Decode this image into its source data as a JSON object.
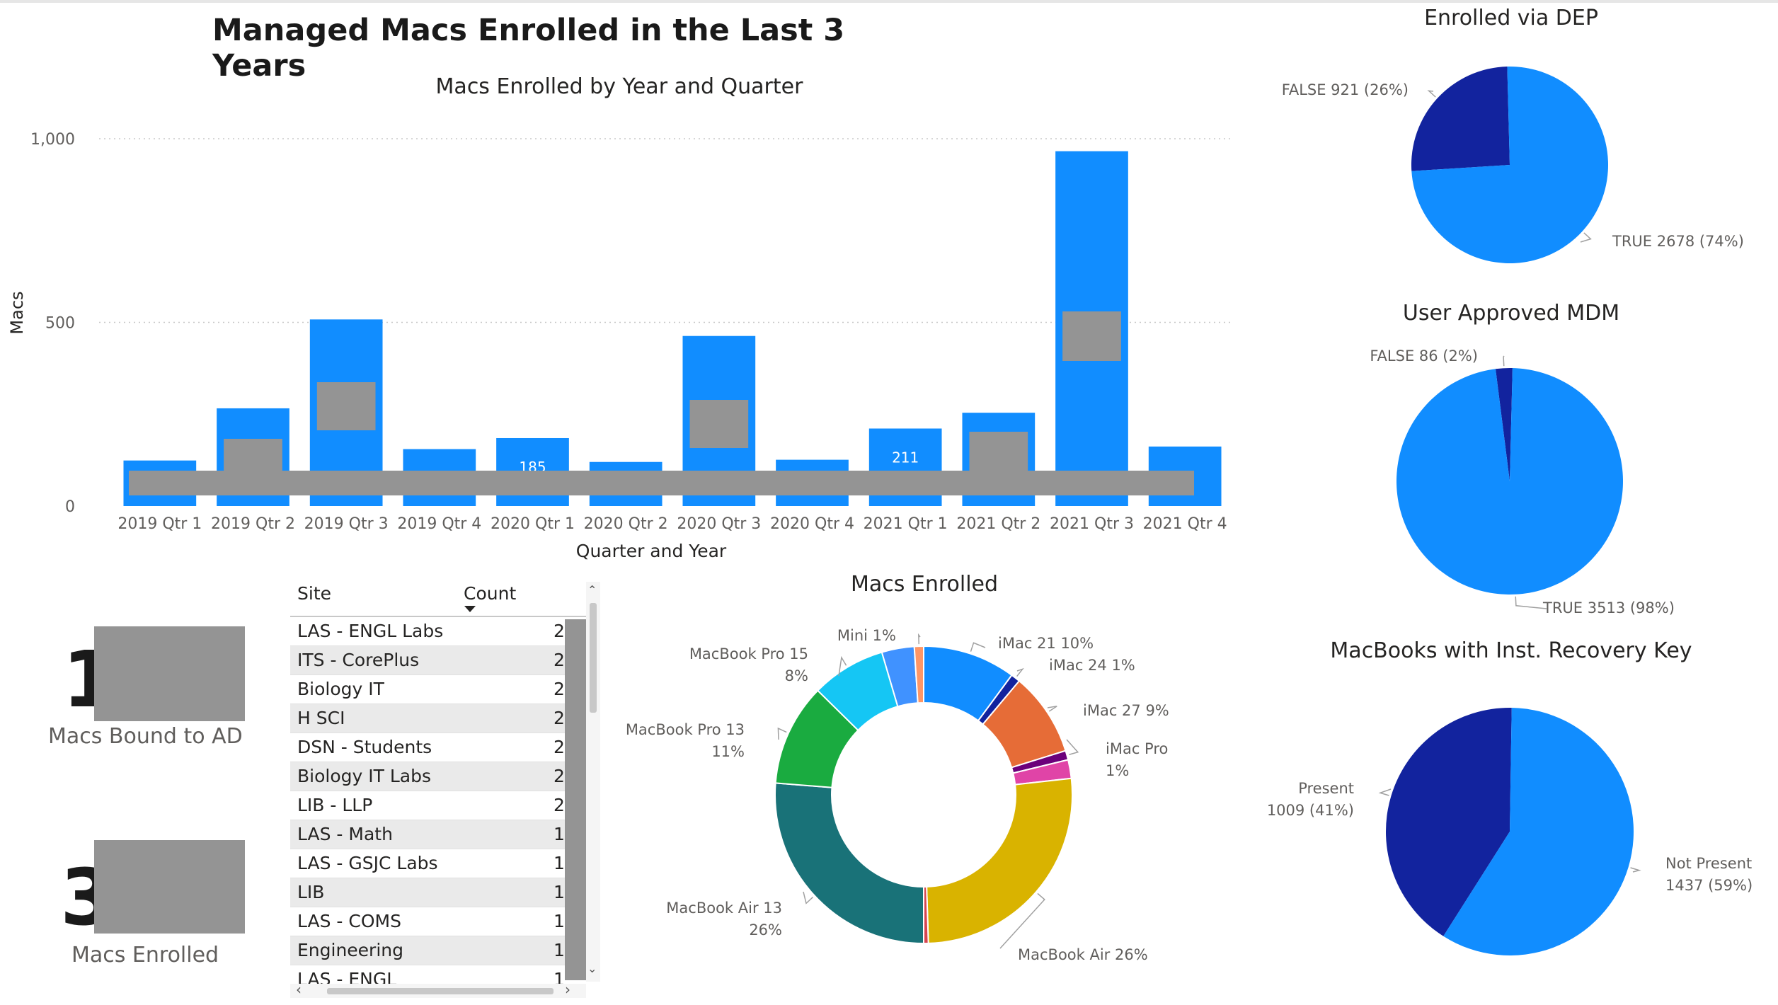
{
  "page": {
    "title": "Managed Macs Enrolled in the Last 3 Years"
  },
  "chart_data": [
    {
      "type": "bar",
      "title": "Macs Enrolled by Year and Quarter",
      "xlabel": "Quarter and Year",
      "ylabel": "Macs",
      "ylim": [
        0,
        1000
      ],
      "yticks": [
        "0",
        "500",
        "1,000"
      ],
      "ytick_values": [
        0,
        500,
        1000
      ],
      "grid": true,
      "categories": [
        "2019 Qtr 1",
        "2019 Qtr 2",
        "2019 Qtr 3",
        "2019 Qtr 4",
        "2020 Qtr 1",
        "2020 Qtr 2",
        "2020 Qtr 3",
        "2020 Qtr 4",
        "2021 Qtr 1",
        "2021 Qtr 2",
        "2021 Qtr 3",
        "2021 Qtr 4"
      ],
      "values": [
        124,
        266,
        508,
        155,
        185,
        120,
        463,
        126,
        211,
        254,
        966,
        162
      ],
      "data_labels": [
        "",
        "",
        "",
        "",
        "185",
        "",
        "",
        "",
        "211",
        "",
        "",
        ""
      ],
      "color": "#118dff"
    },
    {
      "type": "pie",
      "title": "Enrolled via DEP",
      "slices": [
        {
          "label": "FALSE 921 (26%)",
          "value": 921,
          "color": "#12239e"
        },
        {
          "label": "TRUE 2678 (74%)",
          "value": 2678,
          "color": "#118dff"
        }
      ]
    },
    {
      "type": "pie",
      "title": "User Approved MDM",
      "slices": [
        {
          "label": "FALSE 86 (2%)",
          "value": 86,
          "color": "#12239e"
        },
        {
          "label": "TRUE 3513 (98%)",
          "value": 3513,
          "color": "#118dff"
        }
      ]
    },
    {
      "type": "pie",
      "title": "MacBooks with Inst. Recovery Key",
      "slices": [
        {
          "label": "Present",
          "label2": "1009 (41%)",
          "value": 1009,
          "color": "#12239e"
        },
        {
          "label": "Not Present",
          "label2": "1437 (59%)",
          "value": 1437,
          "color": "#118dff"
        }
      ]
    },
    {
      "type": "donut",
      "title": "Macs Enrolled",
      "slices": [
        {
          "label": "iMac 21 10%",
          "value": 10,
          "color": "#118dff"
        },
        {
          "label": "iMac 24 1%",
          "value": 1,
          "color": "#12239e"
        },
        {
          "label": "iMac 27 9%",
          "value": 9,
          "color": "#e66c37"
        },
        {
          "label": "iMac Pro",
          "label2": "1%",
          "value": 1,
          "color": "#6b007b"
        },
        {
          "label": "",
          "value": 2,
          "color": "#e044a7"
        },
        {
          "label": "MacBook Air 26%",
          "value": 26,
          "color": "#d9b300"
        },
        {
          "label": "",
          "value": 0.5,
          "color": "#d64550"
        },
        {
          "label": "MacBook Air 13",
          "label2": "26%",
          "value": 26,
          "color": "#197278"
        },
        {
          "label": "MacBook Pro 13",
          "label2": "11%",
          "value": 11,
          "color": "#1aab40"
        },
        {
          "label": "MacBook Pro 15",
          "label2": "8%",
          "value": 8,
          "color": "#15c6f4"
        },
        {
          "label": "",
          "value": 3.5,
          "color": "#4092ff"
        },
        {
          "label": "Mini 1%",
          "value": 1,
          "color": "#fe9666"
        }
      ]
    }
  ],
  "kpis": [
    {
      "value": "1",
      "label": "Macs Bound to AD"
    },
    {
      "value": "3",
      "label": "Macs Enrolled"
    }
  ],
  "table": {
    "columns": [
      "Site",
      "Count"
    ],
    "rows": [
      {
        "site": "LAS - ENGL Labs",
        "count": "2"
      },
      {
        "site": "ITS - CorePlus",
        "count": "2"
      },
      {
        "site": "Biology IT",
        "count": "2"
      },
      {
        "site": "H SCI",
        "count": "2"
      },
      {
        "site": "DSN - Students",
        "count": "2"
      },
      {
        "site": "Biology IT Labs",
        "count": "2"
      },
      {
        "site": "LIB - LLP",
        "count": "2"
      },
      {
        "site": "LAS - Math",
        "count": "1"
      },
      {
        "site": "LAS - GSJC Labs",
        "count": "1"
      },
      {
        "site": "LIB",
        "count": "1"
      },
      {
        "site": "LAS - COMS",
        "count": "1"
      },
      {
        "site": "Engineering",
        "count": "1"
      },
      {
        "site": "LAS - ENGL",
        "count": "1"
      }
    ]
  },
  "colors": {
    "primary": "#118dff",
    "dark": "#12239e",
    "redaction": "#949494"
  }
}
